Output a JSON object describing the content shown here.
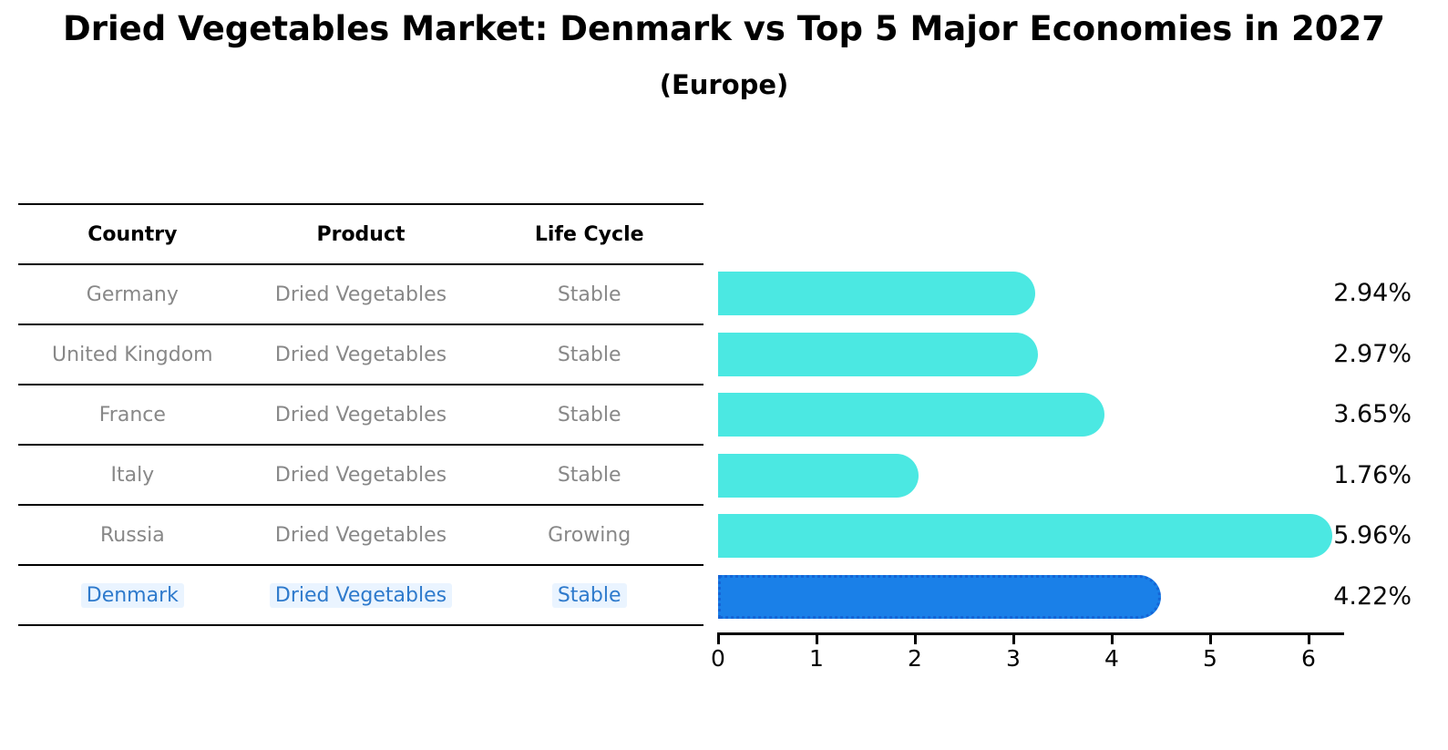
{
  "title": "Dried Vegetables Market: Denmark vs Top 5 Major Economies in 2027",
  "subtitle": "(Europe)",
  "table": {
    "headers": [
      "Country",
      "Product",
      "Life Cycle"
    ],
    "rows": [
      {
        "country": "Germany",
        "product": "Dried Vegetables",
        "life_cycle": "Stable",
        "highlight": false
      },
      {
        "country": "United Kingdom",
        "product": "Dried Vegetables",
        "life_cycle": "Stable",
        "highlight": false
      },
      {
        "country": "France",
        "product": "Dried Vegetables",
        "life_cycle": "Stable",
        "highlight": false
      },
      {
        "country": "Italy",
        "product": "Dried Vegetables",
        "life_cycle": "Stable",
        "highlight": false
      },
      {
        "country": "Russia",
        "product": "Dried Vegetables",
        "life_cycle": "Growing",
        "highlight": false
      },
      {
        "country": "Denmark",
        "product": "Dried Vegetables",
        "life_cycle": "Stable",
        "highlight": true
      }
    ]
  },
  "chart_data": {
    "type": "bar",
    "orientation": "horizontal",
    "title": "Dried Vegetables Market: Denmark vs Top 5 Major Economies in 2027 (Europe)",
    "categories": [
      "Germany",
      "United Kingdom",
      "France",
      "Italy",
      "Russia",
      "Denmark"
    ],
    "values": [
      2.94,
      2.97,
      3.65,
      1.76,
      5.96,
      4.22
    ],
    "value_labels": [
      "2.94%",
      "2.97%",
      "3.65%",
      "1.76%",
      "5.96%",
      "4.22%"
    ],
    "xlabel": "",
    "ylabel": "",
    "x_ticks": [
      0,
      1,
      2,
      3,
      4,
      5,
      6
    ],
    "xlim": [
      0,
      6.33
    ],
    "grid": false,
    "legend_position": "none",
    "bar_color": "#4BE8E2",
    "highlight_index": 5,
    "highlight_color": "#1A80E8",
    "highlight_border_color": "#1565D6"
  },
  "colors": {
    "text": "#000000",
    "muted_text": "#888888",
    "highlight_text": "#2E7ACC",
    "highlight_text_bg": "#EAF4FF",
    "axis": "#000000"
  }
}
